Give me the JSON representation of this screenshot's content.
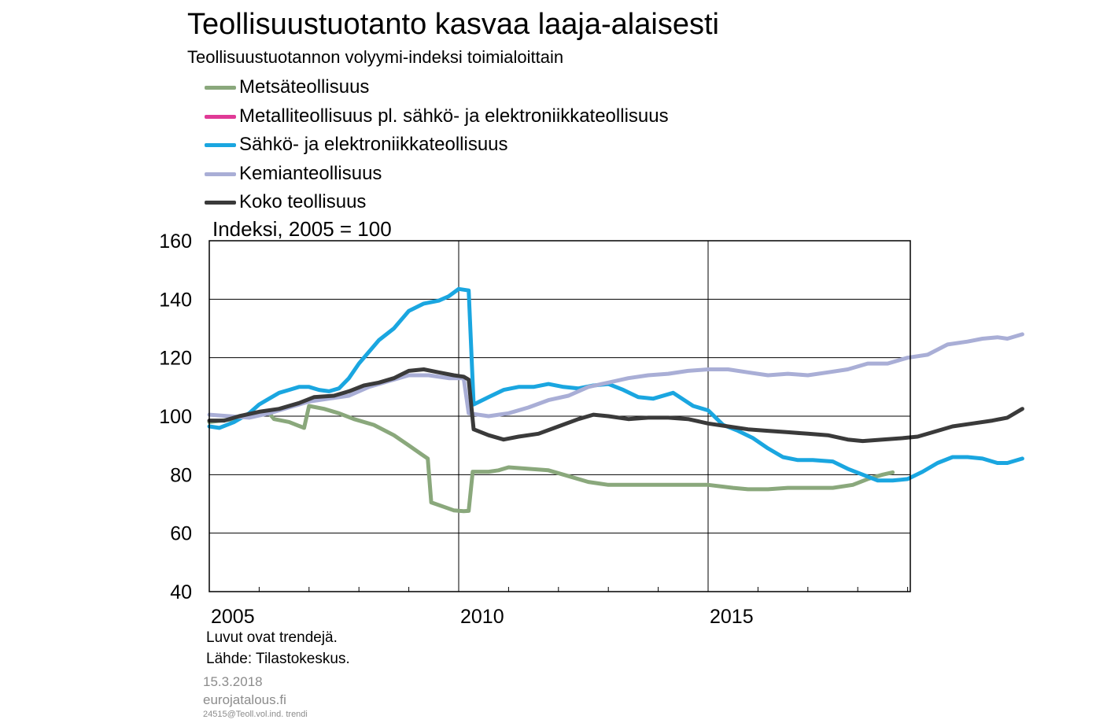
{
  "header": {
    "title": "Teollisuustuotanto kasvaa laaja-alaisesti",
    "subtitle": "Teollisuustuotannon volyymi-indeksi toimialoittain"
  },
  "footer": {
    "note1": "Luvut ovat trendejä.",
    "note2": "Lähde: Tilastokeskus.",
    "date": "15.3.2018",
    "site": "eurojatalous.fi",
    "file": "24515@Teoll.vol.ind. trendi"
  },
  "colors": {
    "metsa": "#8aa87c",
    "metalli": "#e03a96",
    "sahko": "#1aa6e0",
    "kemia": "#a9aed6",
    "koko": "#3a3a3a"
  },
  "chart_data": {
    "type": "line",
    "title": "Teollisuustuotanto kasvaa laaja-alaisesti",
    "subtitle": "Teollisuustuotannon volyymi-indeksi toimialoittain",
    "ylabel": "Indeksi, 2005 = 100",
    "xlabel": "",
    "ylim": [
      40,
      160
    ],
    "yticks": [
      40,
      60,
      80,
      100,
      120,
      140,
      160
    ],
    "xlim": [
      2005.0,
      2019.0
    ],
    "xticks": [
      2005,
      2010,
      2015
    ],
    "grid": true,
    "legend_position": "top-left",
    "series": [
      {
        "name": "Metsäteollisuus",
        "color_key": "metsa",
        "points": [
          [
            2005.0,
            98
          ],
          [
            2005.5,
            99
          ],
          [
            2006.0,
            101
          ],
          [
            2006.2,
            101
          ],
          [
            2006.3,
            99
          ],
          [
            2006.6,
            98
          ],
          [
            2006.9,
            96
          ],
          [
            2007.0,
            103.5
          ],
          [
            2007.3,
            102.5
          ],
          [
            2007.6,
            101
          ],
          [
            2007.9,
            99
          ],
          [
            2008.3,
            97
          ],
          [
            2008.7,
            93.5
          ],
          [
            2009.0,
            90
          ],
          [
            2009.25,
            87
          ],
          [
            2009.38,
            85.5
          ],
          [
            2009.45,
            70.5
          ],
          [
            2009.7,
            69
          ],
          [
            2009.9,
            67.8
          ],
          [
            2010.1,
            67.5
          ],
          [
            2010.2,
            67.6
          ],
          [
            2010.28,
            81
          ],
          [
            2010.6,
            81
          ],
          [
            2010.8,
            81.5
          ],
          [
            2011.0,
            82.5
          ],
          [
            2011.4,
            82
          ],
          [
            2011.8,
            81.5
          ],
          [
            2012.2,
            79.5
          ],
          [
            2012.6,
            77.5
          ],
          [
            2013.0,
            76.5
          ],
          [
            2013.5,
            76.5
          ],
          [
            2014.0,
            76.5
          ],
          [
            2014.5,
            76.5
          ],
          [
            2015.0,
            76.5
          ],
          [
            2015.5,
            75.5
          ],
          [
            2015.8,
            75
          ],
          [
            2016.2,
            75
          ],
          [
            2016.6,
            75.5
          ],
          [
            2017.0,
            75.5
          ],
          [
            2017.5,
            75.5
          ],
          [
            2017.9,
            76.5
          ],
          [
            2018.2,
            78.5
          ],
          [
            2018.5,
            80
          ],
          [
            2018.7,
            80.8
          ]
        ]
      },
      {
        "name": "Metalliteollisuus pl. sähkö- ja elektroniikkateollisuus",
        "color_key": "metalli",
        "points": []
      },
      {
        "name": "Sähkö- ja elektroniikkateollisuus",
        "color_key": "sahko",
        "points": [
          [
            2005.0,
            96.5
          ],
          [
            2005.2,
            96
          ],
          [
            2005.5,
            98
          ],
          [
            2005.8,
            101
          ],
          [
            2006.0,
            104
          ],
          [
            2006.2,
            106
          ],
          [
            2006.4,
            108
          ],
          [
            2006.6,
            109
          ],
          [
            2006.8,
            110
          ],
          [
            2007.0,
            110
          ],
          [
            2007.2,
            109
          ],
          [
            2007.4,
            108.5
          ],
          [
            2007.6,
            109.5
          ],
          [
            2007.8,
            113
          ],
          [
            2008.0,
            118
          ],
          [
            2008.2,
            122
          ],
          [
            2008.4,
            126
          ],
          [
            2008.7,
            130
          ],
          [
            2009.0,
            136
          ],
          [
            2009.3,
            138.5
          ],
          [
            2009.6,
            139.5
          ],
          [
            2009.8,
            141
          ],
          [
            2010.0,
            143.5
          ],
          [
            2010.2,
            143
          ],
          [
            2010.3,
            104
          ],
          [
            2010.6,
            106.5
          ],
          [
            2010.9,
            109
          ],
          [
            2011.2,
            110
          ],
          [
            2011.5,
            110
          ],
          [
            2011.8,
            111
          ],
          [
            2012.1,
            110
          ],
          [
            2012.4,
            109.5
          ],
          [
            2012.7,
            110.5
          ],
          [
            2013.0,
            111
          ],
          [
            2013.3,
            109
          ],
          [
            2013.6,
            106.5
          ],
          [
            2013.9,
            106
          ],
          [
            2014.3,
            108
          ],
          [
            2014.7,
            103.5
          ],
          [
            2015.0,
            102
          ],
          [
            2015.3,
            97
          ],
          [
            2015.6,
            95
          ],
          [
            2015.9,
            92.5
          ],
          [
            2016.2,
            89
          ],
          [
            2016.5,
            86
          ],
          [
            2016.8,
            85
          ],
          [
            2017.1,
            85
          ],
          [
            2017.5,
            84.5
          ],
          [
            2017.8,
            82
          ],
          [
            2018.1,
            80
          ],
          [
            2018.4,
            78
          ],
          [
            2018.7,
            78
          ],
          [
            2019.0,
            78.5
          ],
          [
            2019.3,
            81
          ],
          [
            2019.6,
            84
          ],
          [
            2019.9,
            86
          ],
          [
            2020.2,
            86
          ],
          [
            2020.5,
            85.5
          ],
          [
            2020.8,
            84
          ],
          [
            2021.0,
            84
          ],
          [
            2021.3,
            85.5
          ]
        ]
      },
      {
        "name": "Kemianteollisuus",
        "color_key": "kemia",
        "points": [
          [
            2005.0,
            100.5
          ],
          [
            2005.4,
            100
          ],
          [
            2005.8,
            99.5
          ],
          [
            2006.2,
            101
          ],
          [
            2006.6,
            103
          ],
          [
            2007.0,
            105
          ],
          [
            2007.4,
            106
          ],
          [
            2007.8,
            107
          ],
          [
            2008.2,
            110
          ],
          [
            2008.6,
            112
          ],
          [
            2009.0,
            114
          ],
          [
            2009.4,
            114
          ],
          [
            2009.8,
            113
          ],
          [
            2010.1,
            113
          ],
          [
            2010.2,
            101
          ],
          [
            2010.6,
            100
          ],
          [
            2011.0,
            101
          ],
          [
            2011.4,
            103
          ],
          [
            2011.8,
            105.5
          ],
          [
            2012.2,
            107
          ],
          [
            2012.6,
            110
          ],
          [
            2013.0,
            111.5
          ],
          [
            2013.4,
            113
          ],
          [
            2013.8,
            114
          ],
          [
            2014.2,
            114.5
          ],
          [
            2014.6,
            115.5
          ],
          [
            2015.0,
            116
          ],
          [
            2015.4,
            116
          ],
          [
            2015.8,
            115
          ],
          [
            2016.2,
            114
          ],
          [
            2016.6,
            114.5
          ],
          [
            2017.0,
            114
          ],
          [
            2017.4,
            115
          ],
          [
            2017.8,
            116
          ],
          [
            2018.2,
            118
          ],
          [
            2018.6,
            118
          ],
          [
            2019.0,
            120
          ],
          [
            2019.4,
            121
          ],
          [
            2019.8,
            124.5
          ],
          [
            2020.2,
            125.5
          ],
          [
            2020.5,
            126.5
          ],
          [
            2020.8,
            127
          ],
          [
            2021.0,
            126.5
          ],
          [
            2021.3,
            128
          ]
        ]
      },
      {
        "name": "Koko teollisuus",
        "color_key": "koko",
        "points": [
          [
            2005.0,
            98.5
          ],
          [
            2005.3,
            98.5
          ],
          [
            2005.6,
            100
          ],
          [
            2006.0,
            101.5
          ],
          [
            2006.4,
            102.5
          ],
          [
            2006.8,
            104.5
          ],
          [
            2007.1,
            106.5
          ],
          [
            2007.5,
            107
          ],
          [
            2007.8,
            108.5
          ],
          [
            2008.1,
            110.5
          ],
          [
            2008.4,
            111.5
          ],
          [
            2008.7,
            113
          ],
          [
            2009.0,
            115.5
          ],
          [
            2009.3,
            116
          ],
          [
            2009.6,
            115
          ],
          [
            2009.9,
            114
          ],
          [
            2010.1,
            113.5
          ],
          [
            2010.2,
            112.5
          ],
          [
            2010.3,
            95.5
          ],
          [
            2010.6,
            93.5
          ],
          [
            2010.9,
            92
          ],
          [
            2011.2,
            93
          ],
          [
            2011.6,
            94
          ],
          [
            2012.0,
            96.5
          ],
          [
            2012.4,
            99
          ],
          [
            2012.7,
            100.5
          ],
          [
            2013.0,
            100
          ],
          [
            2013.4,
            99
          ],
          [
            2013.8,
            99.5
          ],
          [
            2014.2,
            99.5
          ],
          [
            2014.6,
            99
          ],
          [
            2015.0,
            97.5
          ],
          [
            2015.4,
            96.5
          ],
          [
            2015.8,
            95.5
          ],
          [
            2016.2,
            95
          ],
          [
            2016.6,
            94.5
          ],
          [
            2017.0,
            94
          ],
          [
            2017.4,
            93.5
          ],
          [
            2017.8,
            92
          ],
          [
            2018.1,
            91.5
          ],
          [
            2018.5,
            92
          ],
          [
            2018.9,
            92.5
          ],
          [
            2019.2,
            93
          ],
          [
            2019.6,
            95
          ],
          [
            2019.9,
            96.5
          ],
          [
            2020.3,
            97.5
          ],
          [
            2020.7,
            98.5
          ],
          [
            2021.0,
            99.5
          ],
          [
            2021.3,
            102.5
          ]
        ]
      }
    ]
  }
}
